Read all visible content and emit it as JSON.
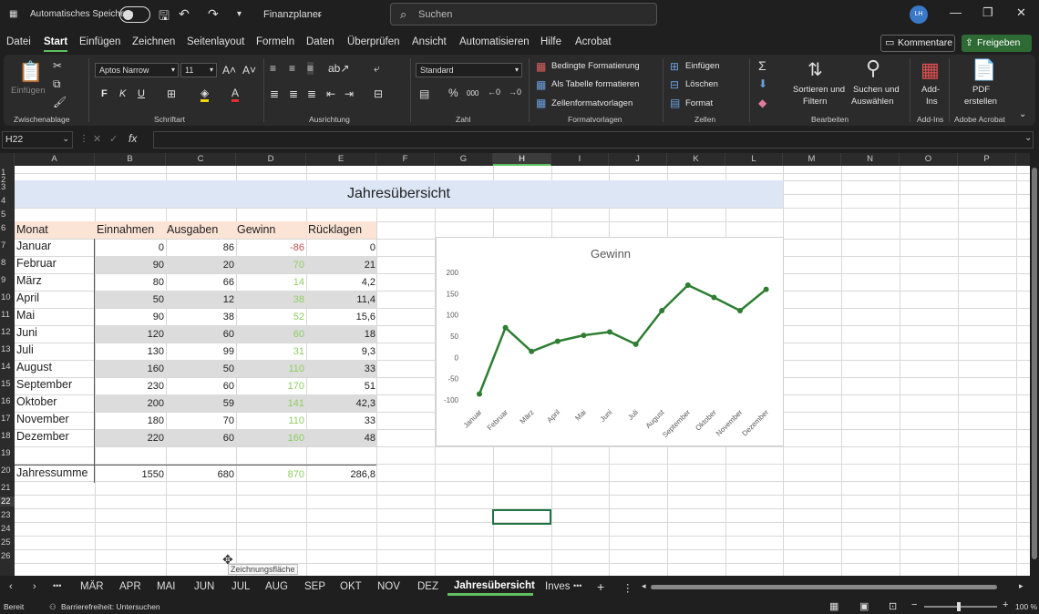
{
  "titlebar": {
    "autosave_label": "Automatisches Speichern",
    "file_name": "Finanzplaner",
    "search_placeholder": "Suchen",
    "avatar_initials": "LH"
  },
  "menu": {
    "tabs": [
      "Datei",
      "Start",
      "Einfügen",
      "Zeichnen",
      "Seitenlayout",
      "Formeln",
      "Daten",
      "Überprüfen",
      "Ansicht",
      "Automatisieren",
      "Hilfe",
      "Acrobat"
    ],
    "active": "Start",
    "comment_button": "Kommentare",
    "share_button": "Freigeben"
  },
  "ribbon": {
    "clipboard": {
      "paste": "Einfügen",
      "label": "Zwischenablage"
    },
    "font": {
      "name": "Aptos Narrow",
      "size": "11",
      "label": "Schriftart",
      "bold": "F",
      "italic": "K",
      "underline": "U"
    },
    "alignment": {
      "label": "Ausrichtung"
    },
    "number": {
      "format": "Standard",
      "label": "Zahl",
      "thousands": "000"
    },
    "styles": {
      "cond": "Bedingte Formatierung",
      "table": "Als Tabelle formatieren",
      "cell": "Zellenformatvorlagen",
      "label": "Formatvorlagen"
    },
    "cells": {
      "insert": "Einfügen",
      "delete": "Löschen",
      "format": "Format",
      "label": "Zellen"
    },
    "editing": {
      "sort1": "Sortieren und",
      "sort2": "Filtern",
      "find1": "Suchen und",
      "find2": "Auswählen",
      "label": "Bearbeiten"
    },
    "addins": {
      "l1": "Add-",
      "l2": "Ins",
      "label": "Add-Ins"
    },
    "acrobat": {
      "l1": "PDF",
      "l2": "erstellen",
      "label": "Adobe Acrobat"
    }
  },
  "formula_bar": {
    "name_box": "H22",
    "fx": "fx",
    "value": ""
  },
  "columns": [
    "A",
    "B",
    "C",
    "D",
    "E",
    "F",
    "G",
    "H",
    "I",
    "J",
    "K",
    "L",
    "M",
    "N",
    "O",
    "P"
  ],
  "rows": [
    "1",
    "2",
    "3",
    "4",
    "5",
    "6",
    "7",
    "8",
    "9",
    "10",
    "11",
    "12",
    "13",
    "14",
    "15",
    "16",
    "17",
    "18",
    "19",
    "20",
    "21",
    "22",
    "23",
    "24",
    "25",
    "26"
  ],
  "sheet": {
    "title": "Jahresübersicht",
    "headers": [
      "Monat",
      "Einnahmen",
      "Ausgaben",
      "Gewinn",
      "Rücklagen"
    ],
    "months": [
      "Januar",
      "Februar",
      "März",
      "April",
      "Mai",
      "Juni",
      "Juli",
      "August",
      "September",
      "Oktober",
      "November",
      "Dezember"
    ],
    "einnahmen": [
      "0",
      "90",
      "80",
      "50",
      "90",
      "120",
      "130",
      "160",
      "230",
      "200",
      "180",
      "220"
    ],
    "ausgaben": [
      "86",
      "20",
      "66",
      "12",
      "38",
      "60",
      "99",
      "50",
      "60",
      "59",
      "70",
      "60"
    ],
    "gewinn": [
      "-86",
      "70",
      "14",
      "38",
      "52",
      "60",
      "31",
      "110",
      "170",
      "141",
      "110",
      "160"
    ],
    "ruecklagen": [
      "0",
      "21",
      "4,2",
      "11,4",
      "15,6",
      "18",
      "9,3",
      "33",
      "51",
      "42,3",
      "33",
      "48"
    ],
    "total_label": "Jahressumme",
    "totals": [
      "1550",
      "680",
      "870",
      "286,8"
    ],
    "colors": {
      "negative": "#c0504d",
      "positive": "#8fce5f",
      "line": "#2e7d32"
    }
  },
  "chart_data": {
    "type": "line",
    "title": "Gewinn",
    "categories": [
      "Januar",
      "Februar",
      "März",
      "April",
      "Mai",
      "Juni",
      "Juli",
      "August",
      "September",
      "Oktober",
      "November",
      "Dezember"
    ],
    "series": [
      {
        "values": [
          -86,
          70,
          14,
          38,
          52,
          60,
          31,
          110,
          170,
          141,
          110,
          160
        ]
      }
    ],
    "ylim": [
      -100,
      200
    ],
    "yticks": [
      "200",
      "150",
      "100",
      "50",
      "0",
      "-50",
      "-100"
    ],
    "grid": false,
    "color": "#2e7d32"
  },
  "cursor_tooltip": "Zeichnungsfläche",
  "sheet_tabs": {
    "tabs": [
      "MÄR",
      "APR",
      "MAI",
      "JUN",
      "JUL",
      "AUG",
      "SEP",
      "OKT",
      "NOV",
      "DEZ",
      "Jahresübersicht",
      "Inves"
    ],
    "active": "Jahresübersicht",
    "more": "•••"
  },
  "status": {
    "ready": "Bereit",
    "accessibility": "Barrierefreiheit: Untersuchen",
    "zoom": "100 %"
  }
}
